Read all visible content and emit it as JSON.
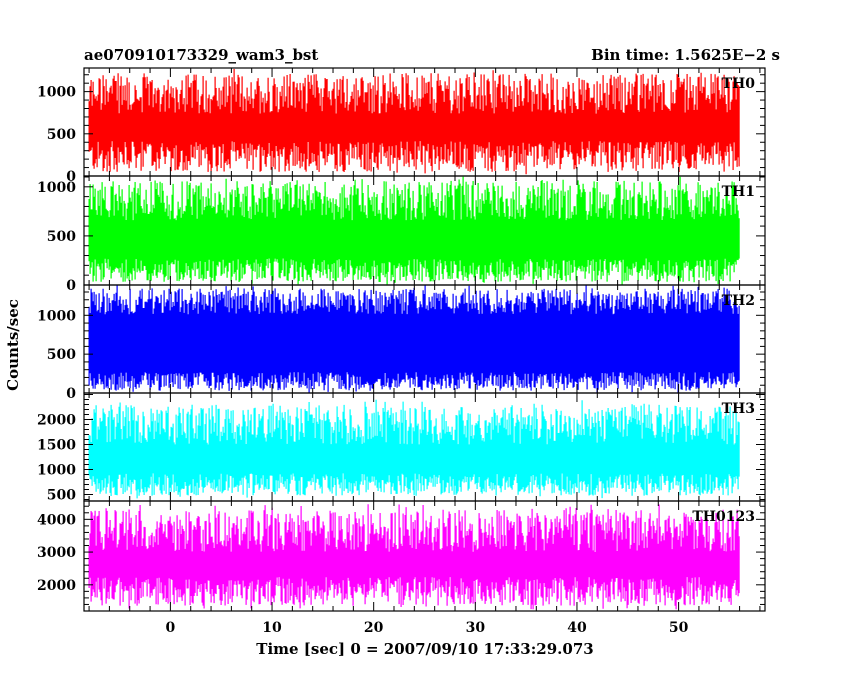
{
  "header": {
    "title": "ae070910173329_wam3_bst",
    "bin_time": "Bin time: 1.5625E−2 s"
  },
  "chart_data": {
    "type": "line",
    "xlabel": "Time [sec] 0 = 2007/09/10 17:33:29.073",
    "ylabel": "Counts/sec",
    "xlim": [
      -8.5,
      58.5
    ],
    "data_x_range": [
      -8,
      56
    ],
    "x_ticks": [
      0,
      10,
      20,
      30,
      40,
      50
    ],
    "x_tick_labels": [
      "0",
      "10",
      "20",
      "30",
      "40",
      "50"
    ],
    "panels": [
      {
        "name": "TH0",
        "color": "#ff0000",
        "ylim": [
          0,
          1280
        ],
        "yticks": [
          0,
          500,
          1000
        ],
        "ytick_labels": [
          "0",
          "500",
          "1000"
        ],
        "typical_low": 230,
        "typical_high": 980,
        "min": 0,
        "max": 1280
      },
      {
        "name": "TH1",
        "color": "#00ff00",
        "ylim": [
          0,
          1110
        ],
        "yticks": [
          0,
          500,
          1000
        ],
        "ytick_labels": [
          "0",
          "500",
          "1000"
        ],
        "typical_low": 150,
        "typical_high": 860,
        "min": 0,
        "max": 1110
      },
      {
        "name": "TH2",
        "color": "#0000ff",
        "ylim": [
          0,
          1390
        ],
        "yticks": [
          0,
          500,
          1000
        ],
        "ytick_labels": [
          "0",
          "500",
          "1000"
        ],
        "typical_low": 150,
        "typical_high": 1180,
        "min": 0,
        "max": 1390
      },
      {
        "name": "TH3",
        "color": "#00ffff",
        "ylim": [
          370,
          2530
        ],
        "yticks": [
          500,
          1000,
          1500,
          2000
        ],
        "ytick_labels": [
          "500",
          "1000",
          "1500",
          "2000"
        ],
        "typical_low": 700,
        "typical_high": 1900,
        "min": 420,
        "max": 2400
      },
      {
        "name": "TH0123",
        "color": "#ff00ff",
        "ylim": [
          1200,
          4560
        ],
        "yticks": [
          2000,
          3000,
          4000
        ],
        "ytick_labels": [
          "2000",
          "3000",
          "4000"
        ],
        "typical_low": 1800,
        "typical_high": 3650,
        "min": 1250,
        "max": 4460
      }
    ]
  }
}
